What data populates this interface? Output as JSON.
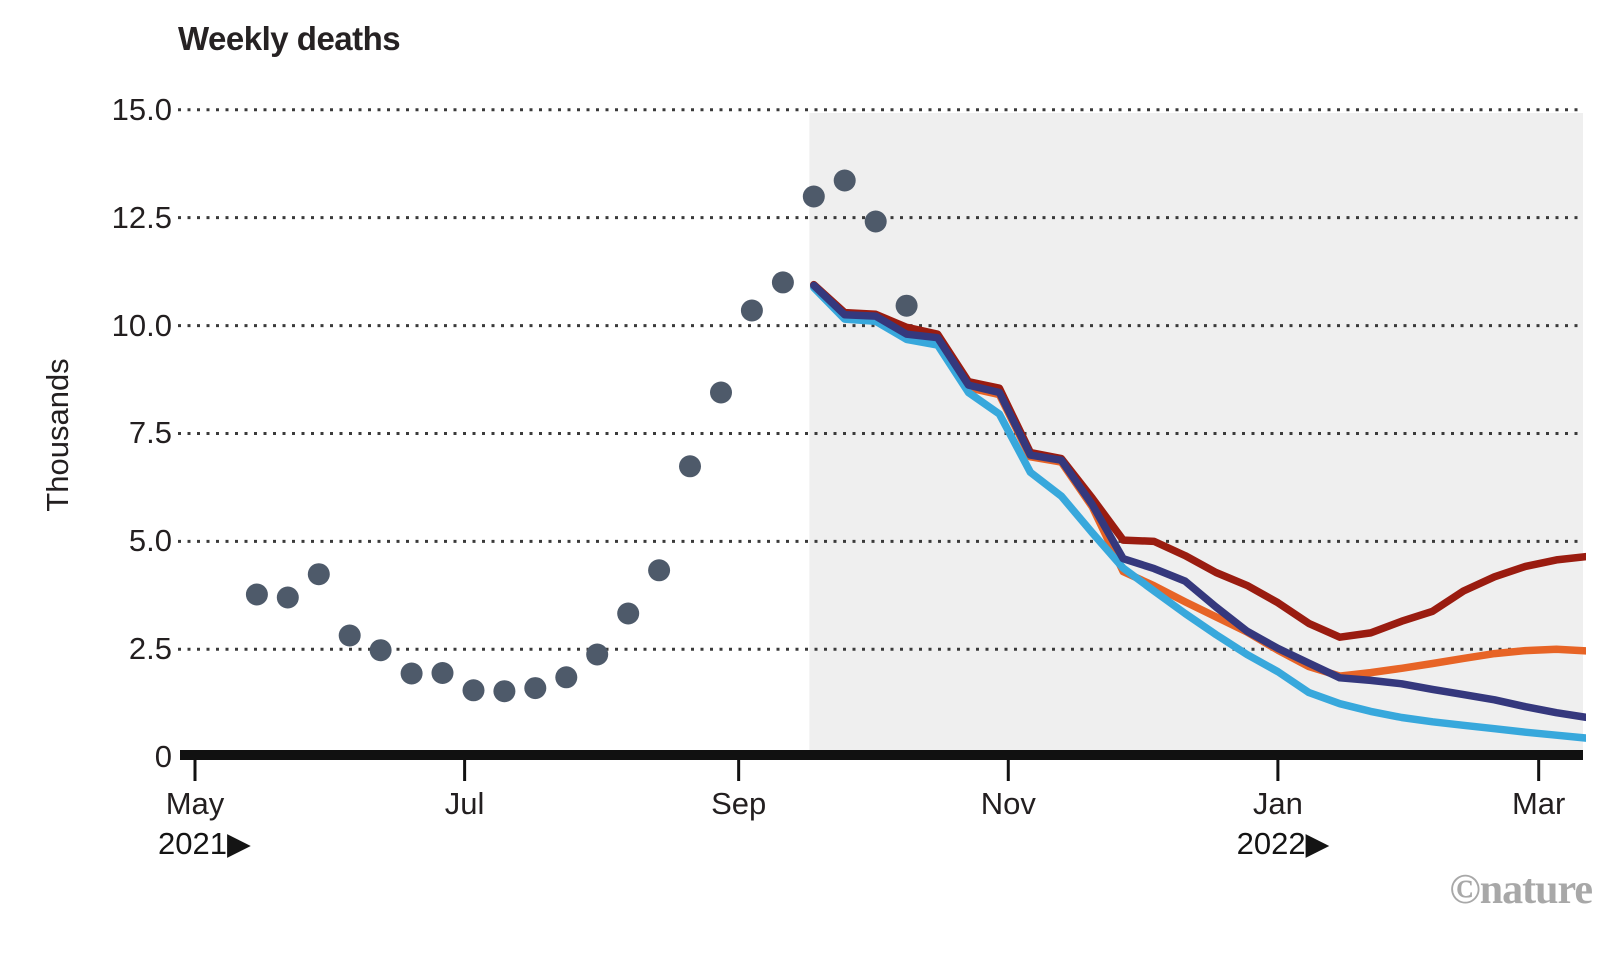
{
  "title": "Weekly deaths",
  "y_axis": {
    "label": "Thousands",
    "tick_labels": [
      "15.0",
      "12.5",
      "10.0",
      "7.5",
      "5.0",
      "2.5",
      "0"
    ],
    "tick_values": [
      15.0,
      12.5,
      10.0,
      7.5,
      5.0,
      2.5,
      0
    ]
  },
  "x_axis": {
    "months": [
      {
        "label": "May",
        "date": "2021-05-01"
      },
      {
        "label": "Jul",
        "date": "2021-07-01"
      },
      {
        "label": "Sep",
        "date": "2021-09-01"
      },
      {
        "label": "Nov",
        "date": "2021-11-01"
      },
      {
        "label": "Jan",
        "date": "2022-01-01"
      },
      {
        "label": "Mar",
        "date": "2022-03-01"
      }
    ],
    "years": [
      {
        "label": "2021▶",
        "anchor_month": "May"
      },
      {
        "label": "2022▶",
        "anchor_month": "Jan"
      }
    ]
  },
  "watermark": "©nature",
  "colors": {
    "observed_dot": "#4e5a6a",
    "grid_dots": "#3a3a3a",
    "axis": "#111111",
    "projection_shade": "#efefef",
    "navy": "#35387d",
    "light_blue": "#38a8dc",
    "dark_red": "#9a1c10",
    "orange": "#e76426",
    "watermark_gray": "#a8a8a8"
  },
  "chart_data": {
    "type": "line",
    "subtype": "scatter-observations-with-projection-lines",
    "title": "Weekly deaths",
    "ylabel": "Thousands",
    "ylim": [
      0,
      15
    ],
    "grid": "horizontal dotted at 2.5 intervals",
    "legend_position": "none",
    "x_range": [
      "2021-05-01",
      "2022-03-15"
    ],
    "projection_shading_start": "2021-09-17",
    "observed": {
      "name": "observed-weekly-deaths",
      "dates": [
        "2021-05-15",
        "2021-05-22",
        "2021-05-29",
        "2021-06-05",
        "2021-06-12",
        "2021-06-19",
        "2021-06-26",
        "2021-07-03",
        "2021-07-10",
        "2021-07-17",
        "2021-07-24",
        "2021-07-31",
        "2021-08-07",
        "2021-08-14",
        "2021-08-21",
        "2021-08-28",
        "2021-09-04",
        "2021-09-11",
        "2021-09-18",
        "2021-09-25",
        "2021-10-02",
        "2021-10-09"
      ],
      "values": [
        3.77,
        3.7,
        4.24,
        2.82,
        2.48,
        1.94,
        1.95,
        1.55,
        1.53,
        1.6,
        1.85,
        2.38,
        3.33,
        4.33,
        6.74,
        8.45,
        10.35,
        11.0,
        12.99,
        13.36,
        12.41,
        10.46
      ]
    },
    "projection_dates": [
      "2021-09-18",
      "2021-09-25",
      "2021-10-02",
      "2021-10-09",
      "2021-10-16",
      "2021-10-23",
      "2021-10-30",
      "2021-11-06",
      "2021-11-13",
      "2021-11-20",
      "2021-11-27",
      "2021-12-04",
      "2021-12-11",
      "2021-12-18",
      "2021-12-25",
      "2022-01-01",
      "2022-01-08",
      "2022-01-15",
      "2022-01-22",
      "2022-01-29",
      "2022-02-05",
      "2022-02-12",
      "2022-02-19",
      "2022-02-26",
      "2022-03-05",
      "2022-03-12"
    ],
    "series": [
      {
        "name": "projection-dark-red",
        "color": "#9a1c10",
        "values": [
          10.95,
          10.3,
          10.26,
          9.96,
          9.8,
          8.7,
          8.55,
          7.06,
          6.92,
          6.0,
          5.03,
          5.0,
          4.67,
          4.28,
          3.98,
          3.58,
          3.1,
          2.78,
          2.88,
          3.15,
          3.38,
          3.85,
          4.18,
          4.42,
          4.57,
          4.65
        ]
      },
      {
        "name": "projection-orange",
        "color": "#e76426",
        "values": [
          10.9,
          10.2,
          10.18,
          9.76,
          9.66,
          8.56,
          8.4,
          6.96,
          6.84,
          5.8,
          4.3,
          3.97,
          3.6,
          3.25,
          2.9,
          2.48,
          2.1,
          1.88,
          1.96,
          2.06,
          2.17,
          2.29,
          2.4,
          2.47,
          2.5,
          2.46
        ]
      },
      {
        "name": "projection-light-blue",
        "color": "#38a8dc",
        "values": [
          10.88,
          10.15,
          10.1,
          9.68,
          9.55,
          8.45,
          7.95,
          6.6,
          6.05,
          5.2,
          4.38,
          3.85,
          3.33,
          2.84,
          2.38,
          1.98,
          1.5,
          1.24,
          1.06,
          0.92,
          0.82,
          0.74,
          0.66,
          0.58,
          0.51,
          0.44
        ]
      },
      {
        "name": "projection-navy",
        "color": "#35387d",
        "values": [
          10.93,
          10.25,
          10.22,
          9.8,
          9.72,
          8.62,
          8.45,
          7.0,
          6.88,
          5.85,
          4.6,
          4.37,
          4.08,
          3.48,
          2.92,
          2.52,
          2.18,
          1.84,
          1.78,
          1.7,
          1.57,
          1.45,
          1.33,
          1.17,
          1.03,
          0.92
        ]
      }
    ]
  }
}
